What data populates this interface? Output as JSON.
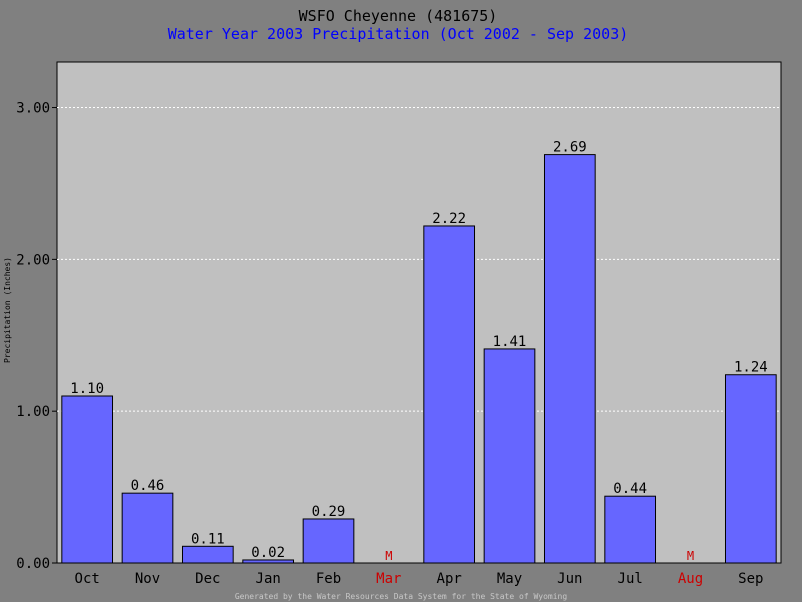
{
  "chart_data": {
    "type": "bar",
    "title": "WSFO Cheyenne (481675)",
    "subtitle": "Water Year 2003 Precipitation (Oct 2002 - Sep 2003)",
    "ylabel": "Precipitation (Inches)",
    "xlabel": "",
    "ylim": [
      0,
      3.3
    ],
    "yticks": [
      "0.00",
      "1.00",
      "2.00",
      "3.00"
    ],
    "ytick_values": [
      0,
      1,
      2,
      3
    ],
    "grid": true,
    "categories": [
      "Oct",
      "Nov",
      "Dec",
      "Jan",
      "Feb",
      "Mar",
      "Apr",
      "May",
      "Jun",
      "Jul",
      "Aug",
      "Sep"
    ],
    "values": [
      1.1,
      0.46,
      0.11,
      0.02,
      0.29,
      null,
      2.22,
      1.41,
      2.69,
      0.44,
      null,
      1.24
    ],
    "value_labels": [
      "1.10",
      "0.46",
      "0.11",
      "0.02",
      "0.29",
      "M",
      "2.22",
      "1.41",
      "2.69",
      "0.44",
      "M",
      "1.24"
    ],
    "missing_categories": [
      "Mar",
      "Aug"
    ],
    "footer": "Generated by the Water Resources Data System for the State of Wyoming"
  },
  "colors": {
    "background": "#808080",
    "plot_background": "#c0c0c0",
    "bar_fill": "#6666ff",
    "bar_stroke": "#000000",
    "title": "#000000",
    "subtitle": "#0000ff",
    "missing": "#cc0000",
    "grid": "#ffffff",
    "footer": "#c8c8c8"
  }
}
